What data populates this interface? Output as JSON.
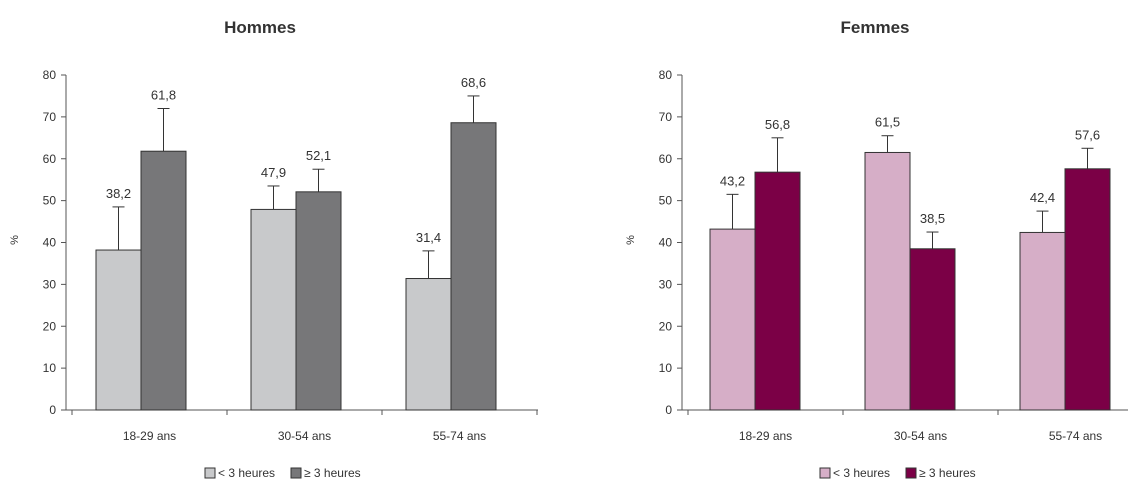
{
  "chart_data": [
    {
      "type": "bar",
      "title": "Hommes",
      "ylabel": "%",
      "ylim": [
        0,
        80
      ],
      "yticks": [
        0,
        10,
        20,
        30,
        40,
        50,
        60,
        70,
        80
      ],
      "categories": [
        "18-29 ans",
        "30-54 ans",
        "55-74 ans"
      ],
      "series": [
        {
          "name": "< 3 heures",
          "color": "#c8c9cb",
          "values": [
            38.2,
            47.9,
            31.4
          ],
          "labels": [
            "38,2",
            "47,9",
            "31,4"
          ],
          "error_upper": [
            48.5,
            53.5,
            38.0
          ]
        },
        {
          "name": "≥ 3 heures",
          "color": "#777779",
          "values": [
            61.8,
            52.1,
            68.6
          ],
          "labels": [
            "61,8",
            "52,1",
            "68,6"
          ],
          "error_upper": [
            72.0,
            57.5,
            75.0
          ]
        }
      ],
      "legend_position": "bottom",
      "grid": false
    },
    {
      "type": "bar",
      "title": "Femmes",
      "ylabel": "%",
      "ylim": [
        0,
        80
      ],
      "yticks": [
        0,
        10,
        20,
        30,
        40,
        50,
        60,
        70,
        80
      ],
      "categories": [
        "18-29 ans",
        "30-54 ans",
        "55-74 ans"
      ],
      "series": [
        {
          "name": "< 3 heures",
          "color": "#d6aec7",
          "values": [
            43.2,
            61.5,
            42.4
          ],
          "labels": [
            "43,2",
            "61,5",
            "42,4"
          ],
          "error_upper": [
            51.5,
            65.5,
            47.5
          ]
        },
        {
          "name": "≥ 3 heures",
          "color": "#7b0046",
          "values": [
            56.8,
            38.5,
            57.6
          ],
          "labels": [
            "56,8",
            "38,5",
            "57,6"
          ],
          "error_upper": [
            65.0,
            42.5,
            62.5
          ]
        }
      ],
      "legend_position": "bottom",
      "grid": false
    }
  ]
}
